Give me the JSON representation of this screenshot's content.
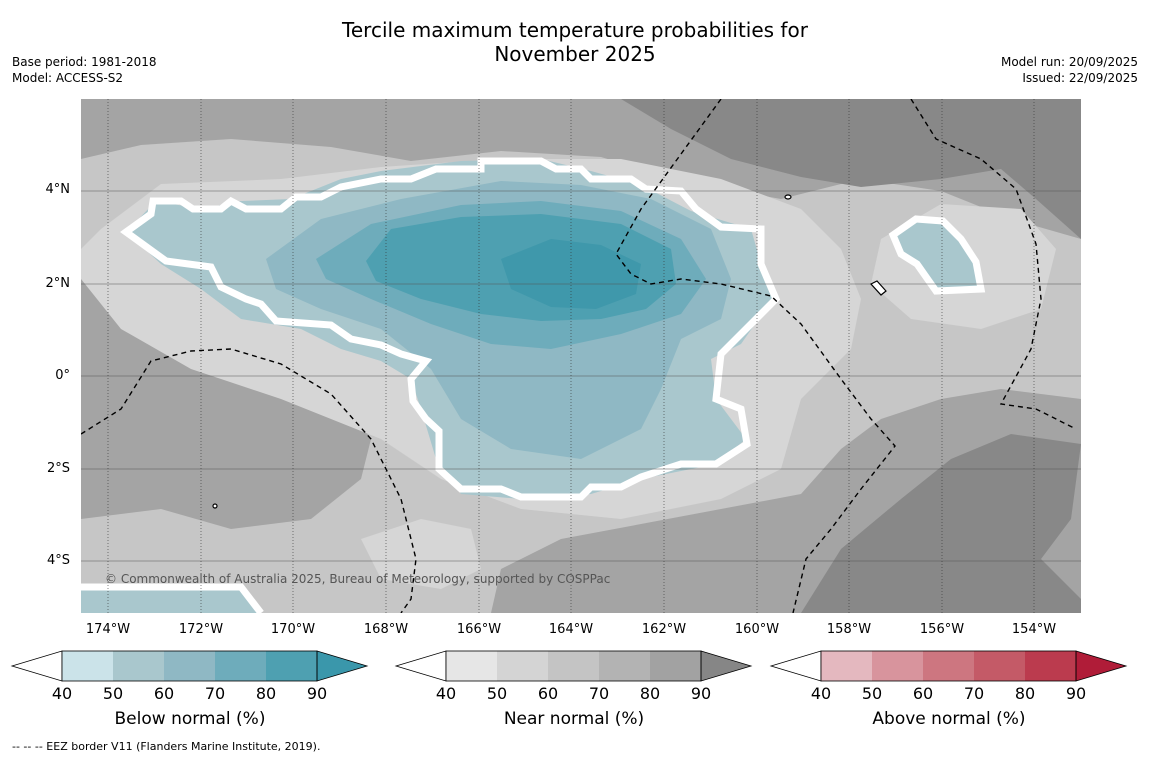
{
  "title_line1": "Tercile maximum temperature probabilities for",
  "title_line2": "November 2025",
  "meta_left": {
    "base_period": "Base period: 1981-2018",
    "model": "Model: ACCESS-S2"
  },
  "meta_right": {
    "model_run": "Model run: 20/09/2025",
    "issued": "Issued: 22/09/2025"
  },
  "lat_labels": [
    "4°N",
    "2°N",
    "0°",
    "2°S",
    "4°S"
  ],
  "lon_labels": [
    "174°W",
    "172°W",
    "170°W",
    "168°W",
    "166°W",
    "164°W",
    "162°W",
    "160°W",
    "158°W",
    "156°W",
    "154°W"
  ],
  "copyright": "© Commonwealth of Australia 2025, Bureau of Meteorology, supported by COSPPac",
  "colorbars": [
    {
      "label": "Below normal (%)",
      "ticks": [
        "40",
        "50",
        "60",
        "70",
        "80",
        "90"
      ],
      "colors": [
        "#cbe3e9",
        "#a9c7cd",
        "#8fb8c4",
        "#6eacbb",
        "#4ea0b1",
        "#3a97ab"
      ]
    },
    {
      "label": "Near normal (%)",
      "ticks": [
        "40",
        "50",
        "60",
        "70",
        "80",
        "90"
      ],
      "colors": [
        "#e6e6e6",
        "#d4d4d4",
        "#c4c4c4",
        "#b3b3b3",
        "#a2a2a2",
        "#868686"
      ]
    },
    {
      "label": "Above normal (%)",
      "ticks": [
        "40",
        "50",
        "60",
        "70",
        "80",
        "90"
      ],
      "colors": [
        "#e4b8bf",
        "#d8949d",
        "#cd7680",
        "#c45a67",
        "#bb3b4e",
        "#b01c38"
      ]
    }
  ],
  "footnote": "--  --  -- EEZ border V11 (Flanders Marine Institute, 2019)."
}
